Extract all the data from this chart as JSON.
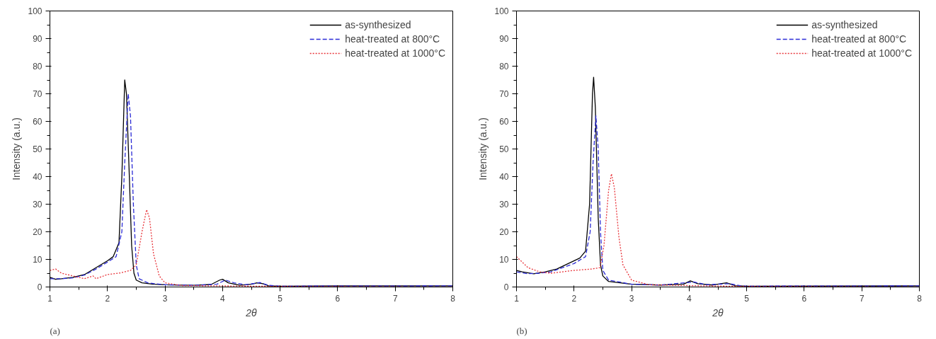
{
  "chart_data": [
    {
      "type": "line",
      "xlabel": "2θ",
      "ylabel": "Intensity (a.u.)",
      "annotations": [
        "(a)"
      ],
      "xlim": [
        1,
        8
      ],
      "ylim": [
        0,
        100
      ],
      "xticks": [
        1,
        2,
        3,
        4,
        5,
        6,
        7,
        8
      ],
      "yticks": [
        0,
        10,
        20,
        30,
        40,
        50,
        60,
        70,
        80,
        90,
        100
      ],
      "legend": "top right",
      "series": [
        {
          "name": "as-synthesized",
          "color": "#000000",
          "line_style": "solid",
          "x": [
            1.0,
            1.1,
            1.2,
            1.4,
            1.6,
            1.8,
            2.0,
            2.1,
            2.2,
            2.25,
            2.3,
            2.33,
            2.38,
            2.42,
            2.46,
            2.5,
            2.6,
            2.8,
            3.0,
            3.5,
            3.8,
            3.95,
            4.0,
            4.1,
            4.3,
            4.5,
            4.6,
            4.7,
            4.8,
            5,
            6,
            8
          ],
          "values": [
            3.5,
            2.8,
            3,
            3.5,
            4.5,
            7,
            9.5,
            11,
            16,
            40,
            75,
            70,
            40,
            15,
            5,
            2.5,
            1.5,
            1.0,
            0.8,
            0.6,
            0.9,
            2.5,
            2.8,
            1.5,
            0.6,
            1.0,
            1.5,
            1.2,
            0.4,
            0.3,
            0.4,
            0.4
          ]
        },
        {
          "name": "heat-treated at 800°C",
          "color": "#2b2bd6",
          "line_style": "dashed",
          "x": [
            1.0,
            1.2,
            1.4,
            1.6,
            1.8,
            2.0,
            2.15,
            2.25,
            2.3,
            2.36,
            2.4,
            2.45,
            2.5,
            2.55,
            2.7,
            3.0,
            3.5,
            3.9,
            4.05,
            4.2,
            4.4,
            4.65,
            4.8,
            5,
            8
          ],
          "values": [
            3,
            3,
            3.3,
            4.3,
            6.5,
            9,
            11,
            20,
            45,
            70,
            62,
            30,
            8,
            3,
            1.5,
            0.8,
            0.6,
            1.0,
            2.5,
            1.5,
            0.8,
            1.6,
            0.6,
            0.3,
            0.4
          ]
        },
        {
          "name": "heat-treated at 1000°C",
          "color": "#e8343a",
          "line_style": "dotted",
          "x": [
            1.0,
            1.1,
            1.2,
            1.4,
            1.6,
            1.75,
            1.8,
            2.0,
            2.2,
            2.4,
            2.5,
            2.6,
            2.68,
            2.73,
            2.8,
            2.9,
            3.0,
            3.3,
            4,
            5,
            8
          ],
          "values": [
            6,
            6.5,
            5,
            4,
            3,
            4,
            3,
            4.5,
            5,
            6,
            8,
            20,
            28,
            25,
            12,
            4,
            1.5,
            0.5,
            0.4,
            0.2,
            0
          ]
        }
      ]
    },
    {
      "type": "line",
      "xlabel": "2θ",
      "ylabel": "Intensity (a.u.)",
      "annotations": [
        "(b)"
      ],
      "xlim": [
        1,
        8
      ],
      "ylim": [
        0,
        100
      ],
      "xticks": [
        1,
        2,
        3,
        4,
        5,
        6,
        7,
        8
      ],
      "yticks": [
        0,
        10,
        20,
        30,
        40,
        50,
        60,
        70,
        80,
        90,
        100
      ],
      "legend": "top right",
      "series": [
        {
          "name": "as-synthesized",
          "color": "#000000",
          "line_style": "solid",
          "x": [
            1.0,
            1.1,
            1.3,
            1.5,
            1.7,
            1.9,
            2.1,
            2.2,
            2.27,
            2.32,
            2.34,
            2.37,
            2.42,
            2.46,
            2.5,
            2.6,
            3.0,
            3.5,
            3.9,
            4.02,
            4.15,
            4.4,
            4.65,
            4.8,
            5,
            8
          ],
          "values": [
            6,
            5.5,
            4.8,
            5.5,
            6.5,
            8.5,
            10.5,
            13,
            30,
            70,
            76,
            65,
            25,
            8,
            4,
            2,
            1,
            0.7,
            1.0,
            2.2,
            1.2,
            0.7,
            1.5,
            0.5,
            0.3,
            0.4
          ]
        },
        {
          "name": "heat-treated at 800°C",
          "color": "#2b2bd6",
          "line_style": "dashed",
          "x": [
            1.0,
            1.2,
            1.4,
            1.6,
            1.8,
            2.0,
            2.2,
            2.28,
            2.33,
            2.38,
            2.42,
            2.46,
            2.5,
            2.6,
            3.0,
            3.5,
            4.08,
            4.3,
            4.7,
            4.9,
            5,
            8
          ],
          "values": [
            5.5,
            4.8,
            5,
            5.5,
            7,
            8.5,
            11,
            20,
            45,
            62,
            50,
            20,
            6,
            2.5,
            1,
            0.7,
            1.8,
            0.8,
            1.2,
            0.4,
            0.3,
            0.4
          ]
        },
        {
          "name": "heat-treated at 1000°C",
          "color": "#e8343a",
          "line_style": "dotted",
          "x": [
            1.0,
            1.1,
            1.2,
            1.4,
            1.6,
            1.8,
            2.0,
            2.3,
            2.45,
            2.52,
            2.6,
            2.65,
            2.7,
            2.78,
            2.85,
            3.0,
            3.3,
            4,
            5,
            8
          ],
          "values": [
            11,
            9,
            7,
            5.5,
            5,
            5.5,
            6,
            6.5,
            7,
            15,
            35,
            41,
            36,
            18,
            8,
            2.5,
            0.8,
            0.5,
            0.2,
            0
          ]
        }
      ]
    }
  ]
}
